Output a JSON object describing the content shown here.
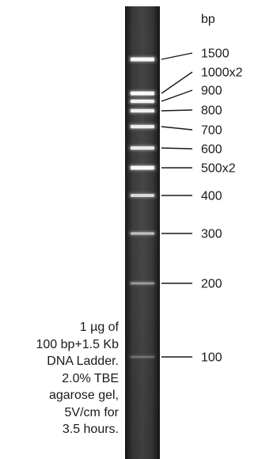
{
  "units_label": "bp",
  "bands": [
    {
      "label": "1500",
      "size_bp": 1500
    },
    {
      "label": "1000x2",
      "size_bp": 1000
    },
    {
      "label": "900",
      "size_bp": 900
    },
    {
      "label": "800",
      "size_bp": 800
    },
    {
      "label": "700",
      "size_bp": 700
    },
    {
      "label": "600",
      "size_bp": 600
    },
    {
      "label": "500x2",
      "size_bp": 500
    },
    {
      "label": "400",
      "size_bp": 400
    },
    {
      "label": "300",
      "size_bp": 300
    },
    {
      "label": "200",
      "size_bp": 200
    },
    {
      "label": "100",
      "size_bp": 100
    }
  ],
  "caption": {
    "lines": [
      "1 µg of",
      "100 bp+1.5 Kb",
      "DNA Ladder.",
      "2.0% TBE",
      "agarose gel,",
      "5V/cm for",
      "3.5 hours."
    ]
  }
}
